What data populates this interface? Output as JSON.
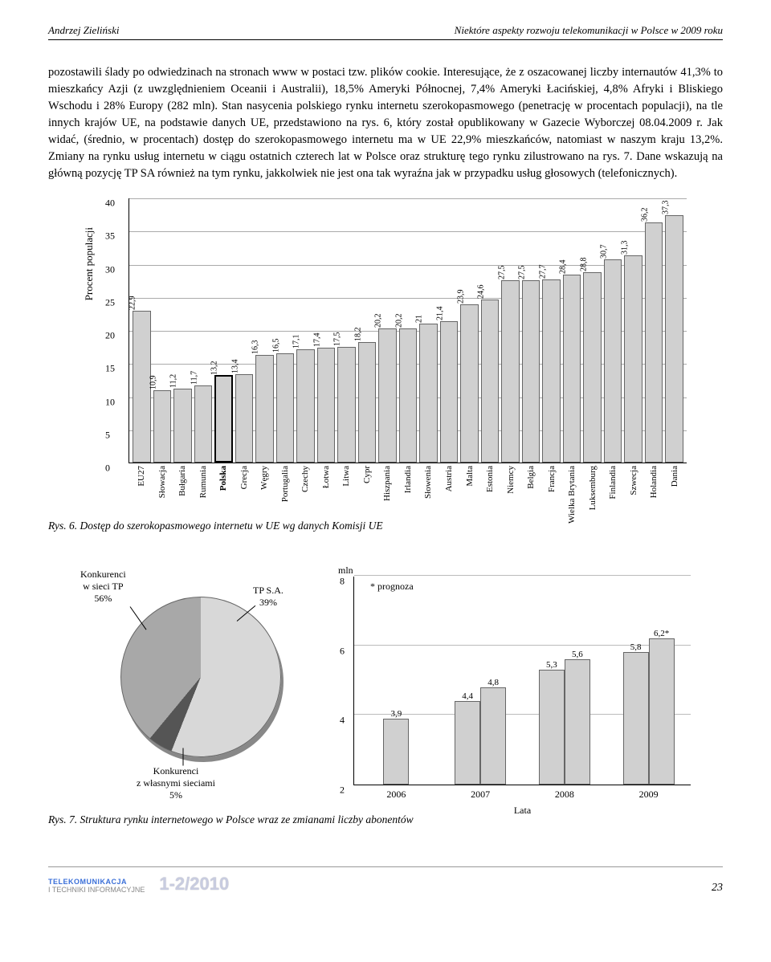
{
  "header": {
    "author": "Andrzej Zieliński",
    "title": "Niektóre aspekty rozwoju telekomunikacji w Polsce w 2009 roku"
  },
  "paragraph": "pozostawili ślady po odwiedzinach na stronach www w postaci tzw. plików cookie. Interesujące, że z oszacowanej liczby internautów 41,3% to mieszkańcy Azji (z uwzględnieniem Oceanii i Australii), 18,5% Ameryki Północnej, 7,4% Ameryki Łacińskiej, 4,8% Afryki i Bliskiego Wschodu i 28% Europy (282 mln). Stan nasycenia polskiego rynku internetu szerokopasmowego (penetrację w procentach populacji), na tle innych krajów UE, na podstawie danych UE, przedstawiono na rys. 6, który został opublikowany w Gazecie Wyborczej 08.04.2009 r. Jak widać, (średnio, w procentach) dostęp do szerokopasmowego internetu ma w UE 22,9% mieszkańców, natomiast w naszym kraju 13,2%. Zmiany na rynku usług internetu w ciągu ostatnich czterech lat w Polsce oraz strukturę tego rynku zilustrowano na rys. 7. Dane wskazują na główną pozycję TP SA również na tym rynku, jakkolwiek nie jest ona tak wyraźna jak w przypadku usług głosowych (telefonicznych).",
  "barChart": {
    "ylabel": "Procent populacji",
    "ymax": 40,
    "yticks": [
      0,
      5,
      10,
      15,
      20,
      25,
      30,
      35,
      40
    ],
    "bar_color": "#d0d0d0",
    "grid_color": "#aaaaaa",
    "bold_index": 4,
    "items": [
      {
        "label": "EU27",
        "value": 22.9,
        "display": "22,9"
      },
      {
        "label": "Słowacja",
        "value": 10.9,
        "display": "10,9"
      },
      {
        "label": "Bułgaria",
        "value": 11.2,
        "display": "11,2"
      },
      {
        "label": "Rumunia",
        "value": 11.7,
        "display": "11,7"
      },
      {
        "label": "Polska",
        "value": 13.2,
        "display": "13,2"
      },
      {
        "label": "Grecja",
        "value": 13.4,
        "display": "13,4"
      },
      {
        "label": "Węgry",
        "value": 16.3,
        "display": "16,3"
      },
      {
        "label": "Portugalia",
        "value": 16.5,
        "display": "16,5"
      },
      {
        "label": "Czechy",
        "value": 17.1,
        "display": "17,1"
      },
      {
        "label": "Łotwa",
        "value": 17.4,
        "display": "17,4"
      },
      {
        "label": "Litwa",
        "value": 17.5,
        "display": "17,5"
      },
      {
        "label": "Cypr",
        "value": 18.2,
        "display": "18,2"
      },
      {
        "label": "Hiszpania",
        "value": 20.2,
        "display": "20,2"
      },
      {
        "label": "Irlandia",
        "value": 20.2,
        "display": "20,2"
      },
      {
        "label": "Słowenia",
        "value": 21.0,
        "display": "21"
      },
      {
        "label": "Austria",
        "value": 21.4,
        "display": "21,4"
      },
      {
        "label": "Malta",
        "value": 23.9,
        "display": "23,9"
      },
      {
        "label": "Estonia",
        "value": 24.6,
        "display": "24,6"
      },
      {
        "label": "Niemcy",
        "value": 27.5,
        "display": "27,5"
      },
      {
        "label": "Belgia",
        "value": 27.5,
        "display": "27,5"
      },
      {
        "label": "Francja",
        "value": 27.7,
        "display": "27,7"
      },
      {
        "label": "Wielka Brytania",
        "value": 28.4,
        "display": "28,4"
      },
      {
        "label": "Luksemburg",
        "value": 28.8,
        "display": "28,8"
      },
      {
        "label": "Finlandia",
        "value": 30.7,
        "display": "30,7"
      },
      {
        "label": "Szwecja",
        "value": 31.3,
        "display": "31,3"
      },
      {
        "label": "Holandia",
        "value": 36.2,
        "display": "36,2"
      },
      {
        "label": "Dania",
        "value": 37.3,
        "display": "37,3"
      }
    ]
  },
  "caption6": "Rys. 6. Dostęp do szerokopasmowego internetu w UE wg danych Komisji UE",
  "pie": {
    "slices": [
      {
        "label": "Konkurenci\nw sieci TP\n56%",
        "value": 56,
        "color": "#d8d8d8"
      },
      {
        "label": "Konkurenci\nz własnymi sieciami\n5%",
        "value": 5,
        "color": "#555555"
      },
      {
        "label": "TP S.A.\n39%",
        "value": 39,
        "color": "#a8a8a8"
      }
    ]
  },
  "bar2": {
    "unit": "mln",
    "note": "* prognoza",
    "xaxis": "Lata",
    "ymin": 2,
    "ymax": 8,
    "yticks": [
      2,
      4,
      6,
      8
    ],
    "years": [
      {
        "year": "2006",
        "vals": [
          {
            "v": 3.9,
            "d": "3,9"
          }
        ]
      },
      {
        "year": "2007",
        "vals": [
          {
            "v": 4.4,
            "d": "4,4"
          },
          {
            "v": 4.8,
            "d": "4,8"
          }
        ]
      },
      {
        "year": "2008",
        "vals": [
          {
            "v": 5.3,
            "d": "5,3"
          },
          {
            "v": 5.6,
            "d": "5,6"
          }
        ]
      },
      {
        "year": "2009",
        "vals": [
          {
            "v": 5.8,
            "d": "5,8"
          },
          {
            "v": 6.2,
            "d": "6,2*"
          }
        ]
      }
    ]
  },
  "caption7": "Rys. 7. Struktura rynku internetowego w Polsce wraz ze zmianami liczby abonentów",
  "footer": {
    "brand1": "TELEKOMUNIKACJA",
    "brand2": "I TECHNIKI INFORMACYJNE",
    "issue": "1-2/2010",
    "page": "23"
  }
}
